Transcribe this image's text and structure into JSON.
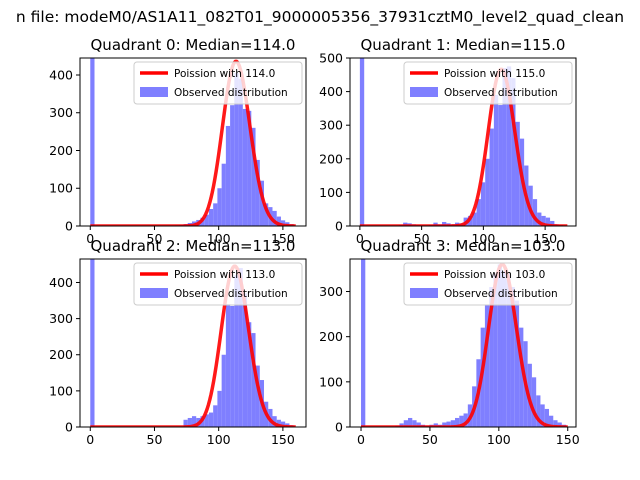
{
  "figure": {
    "suptitle": "n file: modeM0/AS1A11_082T01_9000005356_37931cztM0_level2_quad_clean"
  },
  "chart_data": [
    {
      "type": "bar",
      "title": "Quadrant 0: Median=114.0",
      "median": 114.0,
      "xlim": [
        -8,
        168
      ],
      "ylim": [
        0,
        445
      ],
      "xticks": [
        0,
        50,
        100,
        150
      ],
      "yticks": [
        0,
        100,
        200,
        300,
        400
      ],
      "legend_placement": "top-right",
      "series": [
        {
          "name": "Poission with 114.0",
          "kind": "line",
          "color": "#ff0000",
          "lambda": 114.0,
          "x_range": [
            0,
            160
          ],
          "scale": 436
        },
        {
          "name": "Observed distribution",
          "kind": "histogram",
          "color": "#7f7fff",
          "bin_width": 3.3,
          "bins": [
            [
              0,
              445
            ],
            [
              3.3,
              0
            ],
            [
              6.6,
              0
            ],
            [
              9.9,
              0
            ],
            [
              13.2,
              0
            ],
            [
              16.5,
              0
            ],
            [
              19.8,
              0
            ],
            [
              23.1,
              0
            ],
            [
              26.4,
              0
            ],
            [
              29.7,
              0
            ],
            [
              33,
              0
            ],
            [
              36.3,
              0
            ],
            [
              39.6,
              0
            ],
            [
              42.9,
              0
            ],
            [
              46.2,
              0
            ],
            [
              49.5,
              0
            ],
            [
              52.8,
              0
            ],
            [
              56.1,
              0
            ],
            [
              59.4,
              0
            ],
            [
              62.7,
              1
            ],
            [
              66,
              2
            ],
            [
              69.3,
              3
            ],
            [
              72.6,
              5
            ],
            [
              75.9,
              8
            ],
            [
              79.2,
              12
            ],
            [
              82.5,
              16
            ],
            [
              85.8,
              22
            ],
            [
              89.1,
              30
            ],
            [
              92.4,
              45
            ],
            [
              95.7,
              60
            ],
            [
              99,
              100
            ],
            [
              102.3,
              165
            ],
            [
              105.6,
              265
            ],
            [
              108.9,
              320
            ],
            [
              112.2,
              405
            ],
            [
              115.5,
              390
            ],
            [
              118.8,
              310
            ],
            [
              122.1,
              305
            ],
            [
              125.4,
              260
            ],
            [
              128.7,
              175
            ],
            [
              132,
              120
            ],
            [
              135.3,
              60
            ],
            [
              138.6,
              50
            ],
            [
              141.9,
              40
            ],
            [
              145.2,
              25
            ],
            [
              148.5,
              15
            ],
            [
              151.8,
              10
            ],
            [
              155.1,
              5
            ]
          ]
        }
      ]
    },
    {
      "type": "bar",
      "title": "Quadrant 1: Median=115.0",
      "median": 115.0,
      "xlim": [
        -8,
        175
      ],
      "ylim": [
        0,
        500
      ],
      "xticks": [
        0,
        50,
        100,
        150
      ],
      "yticks": [
        0,
        100,
        200,
        300,
        400,
        500
      ],
      "legend_placement": "top-right",
      "series": [
        {
          "name": "Poission with 115.0",
          "kind": "line",
          "color": "#ff0000",
          "lambda": 115.0,
          "x_range": [
            0,
            168
          ],
          "scale": 466
        },
        {
          "name": "Observed distribution",
          "kind": "histogram",
          "color": "#7f7fff",
          "bin_width": 3.5,
          "bins": [
            [
              0,
              500
            ],
            [
              3.5,
              0
            ],
            [
              7,
              0
            ],
            [
              10.5,
              0
            ],
            [
              14,
              0
            ],
            [
              17.5,
              0
            ],
            [
              21,
              0
            ],
            [
              24.5,
              0
            ],
            [
              28,
              0
            ],
            [
              31.5,
              3
            ],
            [
              35,
              10
            ],
            [
              38.5,
              8
            ],
            [
              42,
              5
            ],
            [
              45.5,
              3
            ],
            [
              49,
              2
            ],
            [
              52.5,
              0
            ],
            [
              56,
              3
            ],
            [
              59.5,
              10
            ],
            [
              63,
              5
            ],
            [
              66.5,
              12
            ],
            [
              70,
              8
            ],
            [
              73.5,
              5
            ],
            [
              77,
              10
            ],
            [
              80.5,
              8
            ],
            [
              84,
              25
            ],
            [
              87.5,
              30
            ],
            [
              91,
              40
            ],
            [
              94.5,
              80
            ],
            [
              98,
              130
            ],
            [
              101.5,
              200
            ],
            [
              105,
              290
            ],
            [
              108.5,
              390
            ],
            [
              112,
              360
            ],
            [
              115.5,
              470
            ],
            [
              119,
              475
            ],
            [
              122.5,
              440
            ],
            [
              126,
              310
            ],
            [
              129.5,
              260
            ],
            [
              133,
              180
            ],
            [
              136.5,
              120
            ],
            [
              140,
              80
            ],
            [
              143.5,
              40
            ],
            [
              147,
              30
            ],
            [
              150.5,
              25
            ],
            [
              154,
              15
            ],
            [
              157.5,
              5
            ],
            [
              161,
              3
            ]
          ]
        }
      ]
    },
    {
      "type": "bar",
      "title": "Quadrant 2: Median=113.0",
      "median": 113.0,
      "xlim": [
        -8,
        168
      ],
      "ylim": [
        0,
        465
      ],
      "xticks": [
        0,
        50,
        100,
        150
      ],
      "yticks": [
        0,
        100,
        200,
        300,
        400
      ],
      "legend_placement": "top-right",
      "series": [
        {
          "name": "Poission with 113.0",
          "kind": "line",
          "color": "#ff0000",
          "lambda": 113.0,
          "x_range": [
            0,
            160
          ],
          "scale": 445
        },
        {
          "name": "Observed distribution",
          "kind": "histogram",
          "color": "#7f7fff",
          "bin_width": 3.3,
          "bins": [
            [
              0,
              465
            ],
            [
              3.3,
              0
            ],
            [
              6.6,
              0
            ],
            [
              9.9,
              0
            ],
            [
              13.2,
              0
            ],
            [
              16.5,
              0
            ],
            [
              19.8,
              0
            ],
            [
              23.1,
              0
            ],
            [
              26.4,
              0
            ],
            [
              29.7,
              0
            ],
            [
              33,
              0
            ],
            [
              36.3,
              0
            ],
            [
              39.6,
              0
            ],
            [
              42.9,
              0
            ],
            [
              46.2,
              0
            ],
            [
              49.5,
              0
            ],
            [
              52.8,
              0
            ],
            [
              56.1,
              0
            ],
            [
              59.4,
              0
            ],
            [
              62.7,
              0
            ],
            [
              66,
              0
            ],
            [
              69.3,
              1
            ],
            [
              72.6,
              20
            ],
            [
              75.9,
              25
            ],
            [
              79.2,
              30
            ],
            [
              82.5,
              25
            ],
            [
              85.8,
              30
            ],
            [
              89.1,
              35
            ],
            [
              92.4,
              40
            ],
            [
              95.7,
              60
            ],
            [
              99,
              100
            ],
            [
              102.3,
              200
            ],
            [
              105.6,
              340
            ],
            [
              108.9,
              335
            ],
            [
              112.2,
              420
            ],
            [
              115.5,
              440
            ],
            [
              118.8,
              370
            ],
            [
              122.1,
              290
            ],
            [
              125.4,
              260
            ],
            [
              128.7,
              170
            ],
            [
              132,
              130
            ],
            [
              135.3,
              70
            ],
            [
              138.6,
              50
            ],
            [
              141.9,
              30
            ],
            [
              145.2,
              20
            ],
            [
              148.5,
              15
            ],
            [
              151.8,
              10
            ],
            [
              155.1,
              5
            ]
          ]
        }
      ]
    },
    {
      "type": "bar",
      "title": "Quadrant 3: Median=103.0",
      "median": 103.0,
      "xlim": [
        -8,
        156
      ],
      "ylim": [
        0,
        372
      ],
      "xticks": [
        0,
        50,
        100,
        150
      ],
      "yticks": [
        0,
        100,
        200,
        300
      ],
      "legend_placement": "top-right",
      "series": [
        {
          "name": "Poission with 103.0",
          "kind": "line",
          "color": "#ff0000",
          "lambda": 103.0,
          "x_range": [
            0,
            150
          ],
          "scale": 360
        },
        {
          "name": "Observed distribution",
          "kind": "histogram",
          "color": "#7f7fff",
          "bin_width": 3.1,
          "bins": [
            [
              0,
              372
            ],
            [
              3.1,
              0
            ],
            [
              6.2,
              0
            ],
            [
              9.3,
              0
            ],
            [
              12.4,
              0
            ],
            [
              15.5,
              0
            ],
            [
              18.6,
              0
            ],
            [
              21.7,
              0
            ],
            [
              24.8,
              3
            ],
            [
              27.9,
              8
            ],
            [
              31,
              15
            ],
            [
              34.1,
              20
            ],
            [
              37.2,
              15
            ],
            [
              40.3,
              10
            ],
            [
              43.4,
              5
            ],
            [
              46.5,
              3
            ],
            [
              49.6,
              5
            ],
            [
              52.7,
              8
            ],
            [
              55.8,
              5
            ],
            [
              58.9,
              10
            ],
            [
              62,
              12
            ],
            [
              65.1,
              15
            ],
            [
              68.2,
              20
            ],
            [
              71.3,
              25
            ],
            [
              74.4,
              30
            ],
            [
              77.5,
              50
            ],
            [
              80.6,
              90
            ],
            [
              83.7,
              150
            ],
            [
              86.8,
              220
            ],
            [
              89.9,
              270
            ],
            [
              93,
              310
            ],
            [
              96.1,
              340
            ],
            [
              99.2,
              360
            ],
            [
              102.3,
              345
            ],
            [
              105.4,
              340
            ],
            [
              108.5,
              310
            ],
            [
              111.6,
              280
            ],
            [
              114.7,
              220
            ],
            [
              117.8,
              190
            ],
            [
              120.9,
              140
            ],
            [
              124,
              110
            ],
            [
              127.1,
              70
            ],
            [
              130.2,
              50
            ],
            [
              133.3,
              40
            ],
            [
              136.4,
              25
            ],
            [
              139.5,
              15
            ],
            [
              142.6,
              10
            ],
            [
              145.7,
              5
            ]
          ]
        }
      ]
    }
  ]
}
